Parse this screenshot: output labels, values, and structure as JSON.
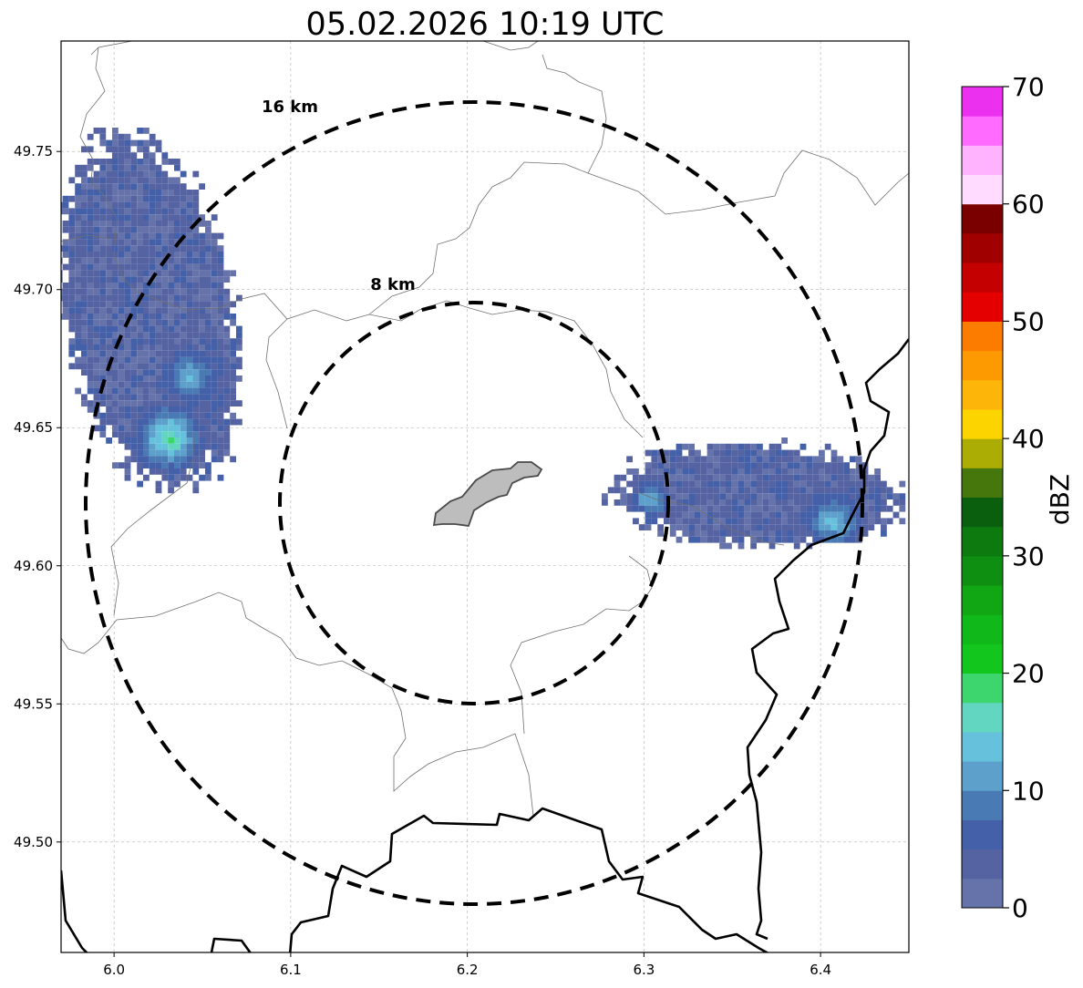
{
  "chart_data": {
    "type": "heatmap",
    "title": "05.02.2026 10:19 UTC",
    "xlim": [
      5.97,
      6.45
    ],
    "ylim": [
      49.46,
      49.79
    ],
    "x_ticks": [
      "6.0",
      "6.1",
      "6.2",
      "6.3",
      "6.4"
    ],
    "y_ticks": [
      "49.50",
      "49.55",
      "49.60",
      "49.65",
      "49.70",
      "49.75"
    ],
    "grid": true,
    "center": {
      "lon": 6.204,
      "lat": 49.623
    },
    "range_rings": [
      {
        "label": "8 km",
        "radius_km": 8
      },
      {
        "label": "16 km",
        "radius_km": 16
      }
    ],
    "colorbar": {
      "label": "dBZ",
      "vmin": 0,
      "vmax": 70,
      "ticks": [
        "0",
        "10",
        "20",
        "30",
        "40",
        "50",
        "60",
        "70"
      ],
      "colors": [
        "#6673ab",
        "#5563a3",
        "#4360a8",
        "#4a7ab4",
        "#5ca0cb",
        "#66c2dc",
        "#63d6c2",
        "#3dd56e",
        "#13c61e",
        "#10b819",
        "#10a614",
        "#0f8f12",
        "#0d7a10",
        "#0a5f0e",
        "#45770d",
        "#abad04",
        "#fcd500",
        "#fdb50a",
        "#fd9a02",
        "#fc7c00",
        "#e50000",
        "#c40001",
        "#a10000",
        "#7a0000",
        "#ffdcff",
        "#ffb3ff",
        "#ff6bff",
        "#ec30f0"
      ]
    },
    "echoes": [
      {
        "region": "north-west",
        "dbz_range": [
          0,
          18
        ],
        "max_dbz": 18
      },
      {
        "region": "east",
        "dbz_range": [
          0,
          13
        ],
        "max_dbz": 13
      }
    ]
  }
}
